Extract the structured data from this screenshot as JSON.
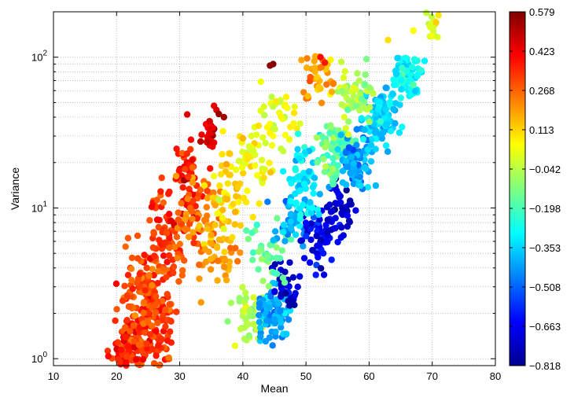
{
  "chart_data": {
    "type": "scatter",
    "title": "",
    "xlabel": "Mean",
    "ylabel": "Variance",
    "xlim": [
      10,
      80
    ],
    "ylim": [
      0.9,
      200
    ],
    "yscale": "log",
    "grid": true,
    "x_ticks": [
      10,
      20,
      30,
      40,
      50,
      60,
      70,
      80
    ],
    "y_ticks": [
      {
        "value": 1,
        "base": "10",
        "exp": "0"
      },
      {
        "value": 10,
        "base": "10",
        "exp": "1"
      },
      {
        "value": 100,
        "base": "10",
        "exp": "2"
      }
    ],
    "colorbar": {
      "colormap": "jet",
      "min": -0.818,
      "max": 0.579,
      "tick_labels": [
        "0.579",
        "0.423",
        "0.268",
        "0.113",
        "−0.042",
        "−0.198",
        "−0.353",
        "−0.508",
        "−0.663",
        "−0.818"
      ]
    },
    "clusters": [
      {
        "x": 22,
        "y": 1.05,
        "c": 0.36,
        "sx": 2.5,
        "sy": 0.22,
        "n": 150
      },
      {
        "x": 26,
        "y": 1.6,
        "c": 0.34,
        "sx": 3.0,
        "sy": 0.3,
        "n": 130
      },
      {
        "x": 24,
        "y": 3.0,
        "c": 0.3,
        "sx": 3.0,
        "sy": 0.28,
        "n": 90
      },
      {
        "x": 28,
        "y": 6.0,
        "c": 0.33,
        "sx": 3.0,
        "sy": 0.3,
        "n": 80
      },
      {
        "x": 31,
        "y": 15,
        "c": 0.4,
        "sx": 2.5,
        "sy": 0.28,
        "n": 55
      },
      {
        "x": 35,
        "y": 30,
        "c": 0.46,
        "sx": 2.5,
        "sy": 0.18,
        "n": 25
      },
      {
        "x": 33,
        "y": 9,
        "c": 0.27,
        "sx": 3.0,
        "sy": 0.28,
        "n": 60
      },
      {
        "x": 36,
        "y": 5,
        "c": 0.17,
        "sx": 3.0,
        "sy": 0.25,
        "n": 55
      },
      {
        "x": 38,
        "y": 12,
        "c": 0.1,
        "sx": 3.0,
        "sy": 0.28,
        "n": 55
      },
      {
        "x": 42,
        "y": 22,
        "c": 0.05,
        "sx": 3.0,
        "sy": 0.25,
        "n": 45
      },
      {
        "x": 46,
        "y": 40,
        "c": 0.02,
        "sx": 3.0,
        "sy": 0.22,
        "n": 35
      },
      {
        "x": 41,
        "y": 1.9,
        "c": -0.05,
        "sx": 2.5,
        "sy": 0.18,
        "n": 45
      },
      {
        "x": 45,
        "y": 2.0,
        "c": -0.42,
        "sx": 2.5,
        "sy": 0.18,
        "n": 90
      },
      {
        "x": 47,
        "y": 3.0,
        "c": -0.7,
        "sx": 2.0,
        "sy": 0.15,
        "n": 35
      },
      {
        "x": 44,
        "y": 5.0,
        "c": -0.15,
        "sx": 3.0,
        "sy": 0.22,
        "n": 40
      },
      {
        "x": 48,
        "y": 8.0,
        "c": -0.42,
        "sx": 2.5,
        "sy": 0.18,
        "n": 45
      },
      {
        "x": 52,
        "y": 6.0,
        "c": -0.66,
        "sx": 2.5,
        "sy": 0.18,
        "n": 55
      },
      {
        "x": 55,
        "y": 10,
        "c": -0.72,
        "sx": 2.5,
        "sy": 0.18,
        "n": 45
      },
      {
        "x": 50,
        "y": 15,
        "c": -0.32,
        "sx": 2.5,
        "sy": 0.22,
        "n": 70
      },
      {
        "x": 55,
        "y": 25,
        "c": -0.16,
        "sx": 3.0,
        "sy": 0.22,
        "n": 90
      },
      {
        "x": 58,
        "y": 20,
        "c": -0.42,
        "sx": 2.5,
        "sy": 0.18,
        "n": 90
      },
      {
        "x": 62,
        "y": 40,
        "c": -0.35,
        "sx": 2.5,
        "sy": 0.18,
        "n": 110
      },
      {
        "x": 58,
        "y": 55,
        "c": -0.07,
        "sx": 2.5,
        "sy": 0.18,
        "n": 60
      },
      {
        "x": 66,
        "y": 75,
        "c": -0.28,
        "sx": 2.2,
        "sy": 0.12,
        "n": 70
      },
      {
        "x": 52,
        "y": 75,
        "c": 0.18,
        "sx": 2.5,
        "sy": 0.15,
        "n": 40
      },
      {
        "x": 70,
        "y": 160,
        "c": 0.02,
        "sx": 1.0,
        "sy": 0.1,
        "n": 15
      }
    ],
    "points": [
      {
        "x": 44.8,
        "y": 90,
        "c": 0.579
      },
      {
        "x": 44.3,
        "y": 88,
        "c": 0.56
      },
      {
        "x": 36.2,
        "y": 42,
        "c": 0.55
      },
      {
        "x": 37.0,
        "y": 40,
        "c": 0.53
      },
      {
        "x": 52.3,
        "y": 100,
        "c": 0.4
      },
      {
        "x": 53.0,
        "y": 92,
        "c": 0.38
      },
      {
        "x": 63.0,
        "y": 130,
        "c": 0.1
      },
      {
        "x": 67.0,
        "y": 150,
        "c": 0.05
      },
      {
        "x": 71.0,
        "y": 190,
        "c": 0.09
      },
      {
        "x": 21.5,
        "y": 0.92,
        "c": 0.4
      }
    ]
  }
}
